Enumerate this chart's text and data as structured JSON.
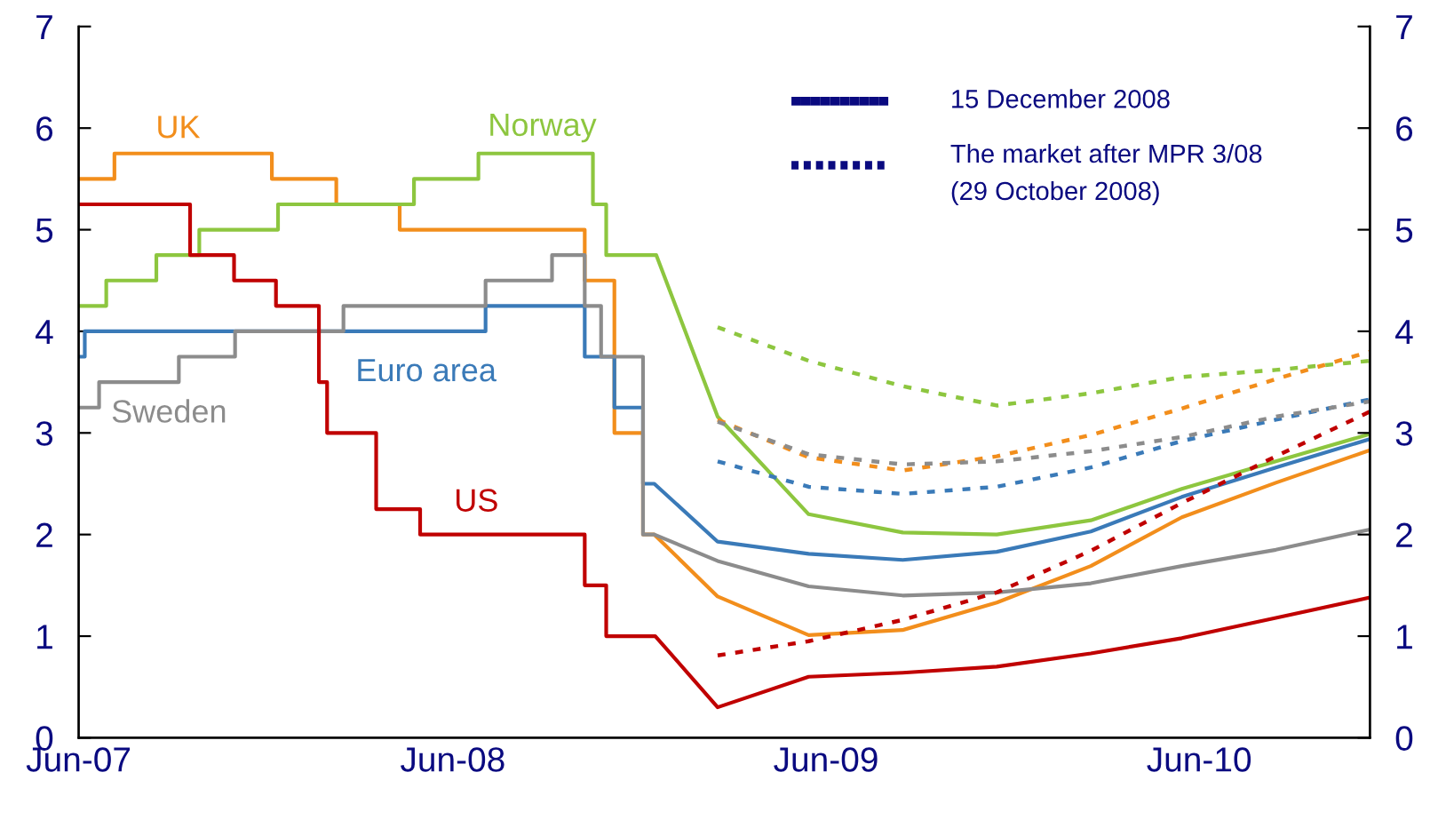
{
  "chart_data": {
    "type": "line",
    "xlim": [
      "2007-06-01",
      "2010-11-15"
    ],
    "xticks": [
      {
        "value": "2007-06-01",
        "label": "Jun-07"
      },
      {
        "value": "2008-06-01",
        "label": "Jun-08"
      },
      {
        "value": "2009-06-01",
        "label": "Jun-09"
      },
      {
        "value": "2010-06-01",
        "label": "Jun-10"
      }
    ],
    "ylim": [
      0,
      7
    ],
    "yticks": [
      0,
      1,
      2,
      3,
      4,
      5,
      6,
      7
    ],
    "y2lim": [
      0,
      7
    ],
    "y2ticks": [
      0,
      1,
      2,
      3,
      4,
      5,
      6,
      7
    ],
    "grid": false,
    "annotations": [
      "15 December 2008",
      "The market after MPR 3/08\n(29 October 2008)"
    ],
    "series": [
      {
        "name": "UK",
        "color": "#f28e1c",
        "line_style": "solid",
        "x": [
          "2007-06-01",
          "2007-07-06",
          "2007-07-06",
          "2007-12-07",
          "2007-12-07",
          "2008-02-08",
          "2008-02-08",
          "2008-04-10",
          "2008-04-10",
          "2008-10-08",
          "2008-10-08",
          "2008-11-06",
          "2008-11-06",
          "2008-12-04",
          "2008-12-04",
          "2008-12-15",
          "2009-02-15",
          "2009-05-15",
          "2009-08-15",
          "2009-11-15",
          "2010-02-15",
          "2010-05-15",
          "2010-08-15",
          "2010-11-15"
        ],
        "values": [
          5.5,
          5.5,
          5.75,
          5.75,
          5.5,
          5.5,
          5.25,
          5.25,
          5.0,
          5.0,
          4.5,
          4.5,
          3.0,
          3.0,
          2.0,
          2.0,
          1.39,
          1.01,
          1.06,
          1.33,
          1.69,
          2.17,
          2.51,
          2.83
        ]
      },
      {
        "name": "Norway",
        "color": "#8dc63f",
        "line_style": "solid",
        "x": [
          "2007-06-01",
          "2007-06-28",
          "2007-06-28",
          "2007-08-16",
          "2007-08-16",
          "2007-09-27",
          "2007-09-27",
          "2007-12-13",
          "2007-12-13",
          "2008-04-24",
          "2008-04-24",
          "2008-06-26",
          "2008-06-26",
          "2008-10-16",
          "2008-10-16",
          "2008-10-29",
          "2008-10-29",
          "2008-12-17",
          "2009-02-15",
          "2009-05-15",
          "2009-08-15",
          "2009-11-15",
          "2010-02-15",
          "2010-05-15",
          "2010-08-15",
          "2010-11-15"
        ],
        "values": [
          4.25,
          4.25,
          4.5,
          4.5,
          4.75,
          4.75,
          5.0,
          5.0,
          5.25,
          5.25,
          5.5,
          5.5,
          5.75,
          5.75,
          5.25,
          5.25,
          4.75,
          4.75,
          3.16,
          2.2,
          2.02,
          2.0,
          2.14,
          2.45,
          2.72,
          2.99
        ]
      },
      {
        "name": "Euro area",
        "color": "#3a7ab8",
        "line_style": "solid",
        "x": [
          "2007-06-01",
          "2007-06-07",
          "2007-06-07",
          "2008-07-03",
          "2008-07-03",
          "2008-10-08",
          "2008-10-08",
          "2008-11-06",
          "2008-11-06",
          "2008-12-04",
          "2008-12-04",
          "2008-12-15",
          "2009-02-15",
          "2009-05-15",
          "2009-08-15",
          "2009-11-15",
          "2010-02-15",
          "2010-05-15",
          "2010-08-15",
          "2010-11-15"
        ],
        "values": [
          3.75,
          3.75,
          4.0,
          4.0,
          4.25,
          4.25,
          3.75,
          3.75,
          3.25,
          3.25,
          2.5,
          2.5,
          1.93,
          1.81,
          1.75,
          1.83,
          2.03,
          2.37,
          2.66,
          2.94
        ]
      },
      {
        "name": "Sweden",
        "color": "#8c8c8c",
        "line_style": "solid",
        "x": [
          "2007-06-01",
          "2007-06-21",
          "2007-06-21",
          "2007-09-07",
          "2007-09-07",
          "2007-11-01",
          "2007-11-01",
          "2008-02-15",
          "2008-02-15",
          "2008-07-03",
          "2008-07-03",
          "2008-09-06",
          "2008-09-06",
          "2008-10-08",
          "2008-10-08",
          "2008-10-24",
          "2008-10-24",
          "2008-12-04",
          "2008-12-04",
          "2008-12-15",
          "2009-02-15",
          "2009-05-15",
          "2009-08-15",
          "2009-11-15",
          "2010-02-15",
          "2010-05-15",
          "2010-08-15",
          "2010-11-15"
        ],
        "values": [
          3.25,
          3.25,
          3.5,
          3.5,
          3.75,
          3.75,
          4.0,
          4.0,
          4.25,
          4.25,
          4.5,
          4.5,
          4.75,
          4.75,
          4.25,
          4.25,
          3.75,
          3.75,
          2.0,
          2.0,
          1.74,
          1.49,
          1.4,
          1.43,
          1.52,
          1.69,
          1.85,
          2.05
        ]
      },
      {
        "name": "US",
        "color": "#c00000",
        "line_style": "solid",
        "x": [
          "2007-06-01",
          "2007-09-18",
          "2007-09-18",
          "2007-10-31",
          "2007-10-31",
          "2007-12-11",
          "2007-12-11",
          "2008-01-22",
          "2008-01-22",
          "2008-01-30",
          "2008-01-30",
          "2008-03-18",
          "2008-03-18",
          "2008-04-30",
          "2008-04-30",
          "2008-10-08",
          "2008-10-08",
          "2008-10-29",
          "2008-10-29",
          "2008-12-16",
          "2009-02-15",
          "2009-05-15",
          "2009-08-15",
          "2009-11-15",
          "2010-02-15",
          "2010-05-15",
          "2010-08-15",
          "2010-11-15"
        ],
        "values": [
          5.25,
          5.25,
          4.75,
          4.75,
          4.5,
          4.5,
          4.25,
          4.25,
          3.5,
          3.5,
          3.0,
          3.0,
          2.25,
          2.25,
          2.0,
          2.0,
          1.5,
          1.5,
          1.0,
          1.0,
          0.3,
          0.6,
          0.64,
          0.7,
          0.83,
          0.98,
          1.18,
          1.38
        ]
      },
      {
        "color": "#f28e1c",
        "line_style": "dotted",
        "x": [
          "2009-02-15",
          "2009-05-15",
          "2009-08-15",
          "2009-11-15",
          "2010-02-15",
          "2010-05-15",
          "2010-08-15",
          "2010-11-15"
        ],
        "values": [
          3.13,
          2.76,
          2.63,
          2.77,
          2.98,
          3.24,
          3.53,
          3.8
        ]
      },
      {
        "color": "#8dc63f",
        "line_style": "dotted",
        "x": [
          "2009-02-15",
          "2009-05-15",
          "2009-08-15",
          "2009-11-15",
          "2010-02-15",
          "2010-05-15",
          "2010-08-15",
          "2010-11-15"
        ],
        "values": [
          4.04,
          3.71,
          3.46,
          3.27,
          3.39,
          3.55,
          3.62,
          3.71
        ]
      },
      {
        "color": "#3a7ab8",
        "line_style": "dotted",
        "x": [
          "2009-02-15",
          "2009-05-15",
          "2009-08-15",
          "2009-11-15",
          "2010-02-15",
          "2010-05-15",
          "2010-08-15",
          "2010-11-15"
        ],
        "values": [
          2.72,
          2.47,
          2.4,
          2.47,
          2.66,
          2.92,
          3.13,
          3.33
        ]
      },
      {
        "color": "#8c8c8c",
        "line_style": "dotted",
        "x": [
          "2009-02-15",
          "2009-05-15",
          "2009-08-15",
          "2009-11-15",
          "2010-02-15",
          "2010-05-15",
          "2010-08-15",
          "2010-11-15"
        ],
        "values": [
          3.11,
          2.79,
          2.69,
          2.72,
          2.82,
          2.96,
          3.16,
          3.31
        ]
      },
      {
        "color": "#c00000",
        "line_style": "dotted",
        "x": [
          "2009-02-15",
          "2009-05-15",
          "2009-08-15",
          "2009-11-15",
          "2010-02-15",
          "2010-05-15",
          "2010-08-15",
          "2010-11-15"
        ],
        "values": [
          0.81,
          0.95,
          1.16,
          1.43,
          1.84,
          2.31,
          2.77,
          3.21
        ]
      }
    ]
  }
}
